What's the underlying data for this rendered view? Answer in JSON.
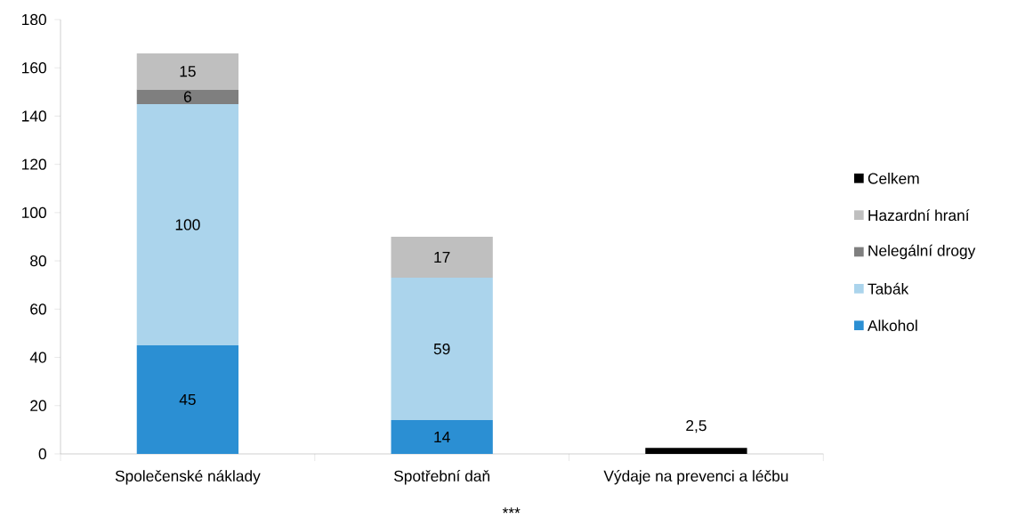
{
  "chart_data": {
    "type": "bar",
    "stacked": true,
    "categories": [
      "Společenské náklady",
      "Spotřební daň",
      "Výdaje na prevenci a léčbu"
    ],
    "series": [
      {
        "name": "Alkohol",
        "color": "#2b8fd3",
        "values": [
          45,
          14,
          null
        ],
        "value_labels": [
          "45",
          "14",
          null
        ]
      },
      {
        "name": "Tabák",
        "color": "#abd4ec",
        "values": [
          100,
          59,
          null
        ],
        "value_labels": [
          "100",
          "59",
          null
        ]
      },
      {
        "name": "Nelegální drogy",
        "color": "#7f7f7f",
        "values": [
          6,
          null,
          null
        ],
        "value_labels": [
          "6",
          null,
          null
        ]
      },
      {
        "name": "Hazardní hraní",
        "color": "#bfbfbf",
        "values": [
          15,
          17,
          null
        ],
        "value_labels": [
          "15",
          "17",
          null
        ]
      },
      {
        "name": "Celkem",
        "color": "#000000",
        "values": [
          null,
          null,
          2.5
        ],
        "value_labels": [
          null,
          null,
          "2,5"
        ]
      }
    ],
    "ylim": [
      0,
      180
    ],
    "yticks": [
      0,
      20,
      40,
      60,
      80,
      100,
      120,
      140,
      160,
      180
    ],
    "legend": "right",
    "grid": false,
    "annotations": [
      "***"
    ]
  }
}
